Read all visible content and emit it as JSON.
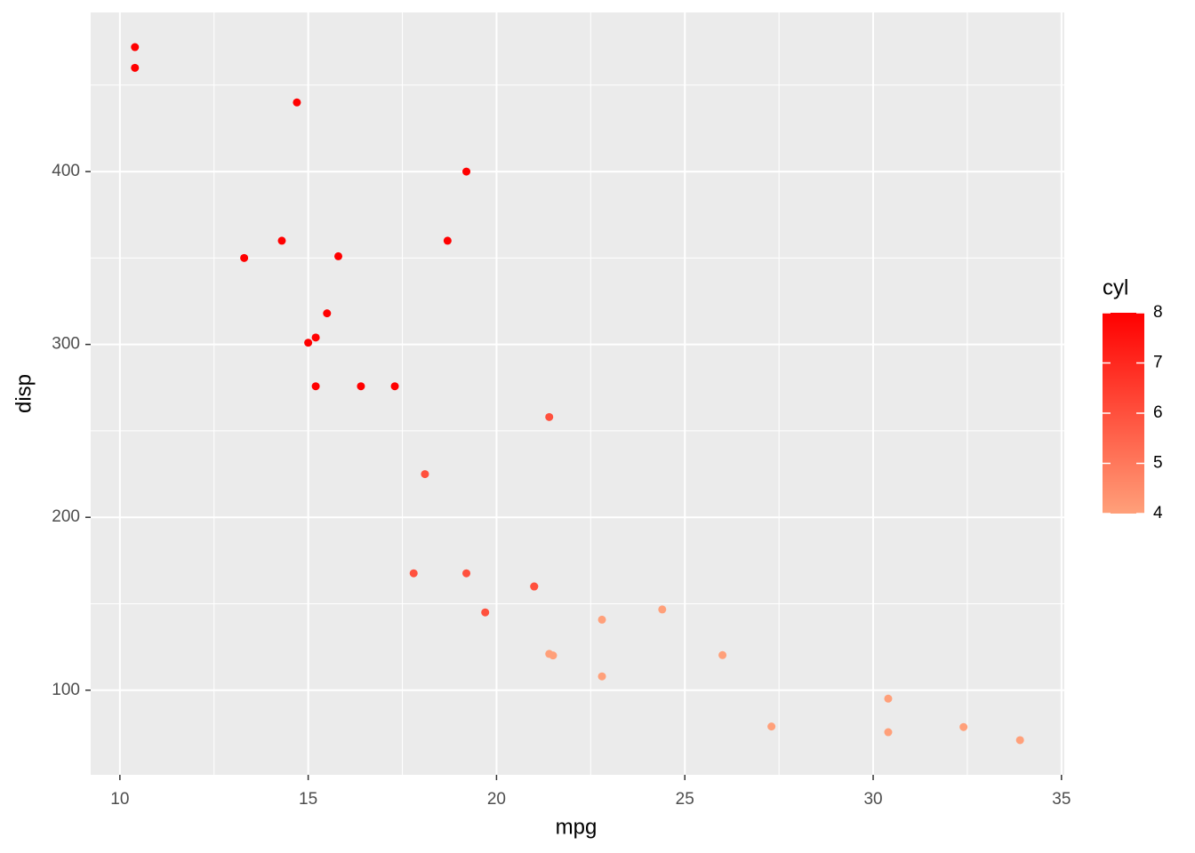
{
  "chart_data": {
    "type": "scatter",
    "x_label": "mpg",
    "y_label": "disp",
    "x": [
      21.0,
      21.0,
      22.8,
      21.4,
      18.7,
      18.1,
      14.3,
      24.4,
      22.8,
      19.2,
      17.8,
      16.4,
      17.3,
      15.2,
      10.4,
      10.4,
      14.7,
      32.4,
      30.4,
      33.9,
      21.5,
      15.5,
      15.2,
      13.3,
      19.2,
      27.3,
      26.0,
      30.4,
      15.8,
      19.7,
      15.0,
      21.4
    ],
    "values": [
      160,
      160,
      108,
      258,
      360,
      225,
      360,
      146.7,
      140.8,
      167.6,
      167.6,
      275.8,
      275.8,
      275.8,
      472,
      460,
      440,
      78.7,
      75.7,
      71.1,
      120.1,
      318,
      304,
      350,
      400,
      79,
      120.3,
      95.1,
      351,
      145,
      301,
      121
    ],
    "color_by": {
      "title": "cyl",
      "values": [
        6,
        6,
        4,
        6,
        8,
        6,
        8,
        4,
        4,
        6,
        6,
        8,
        8,
        8,
        8,
        8,
        8,
        4,
        4,
        4,
        4,
        8,
        8,
        8,
        8,
        4,
        4,
        4,
        8,
        6,
        8,
        4
      ],
      "lim": [
        4,
        8
      ],
      "ticks": [
        4,
        5,
        6,
        7,
        8
      ],
      "low": "#FFA07A",
      "high": "#FF0000"
    },
    "xlim": [
      9.225,
      35.075
    ],
    "xticks": [
      10,
      15,
      20,
      25,
      30,
      35
    ],
    "ylim": [
      51.05,
      492.05
    ],
    "yticks": [
      100,
      200,
      300,
      400
    ],
    "grid": true,
    "minor_grid": true,
    "legend": "right"
  }
}
